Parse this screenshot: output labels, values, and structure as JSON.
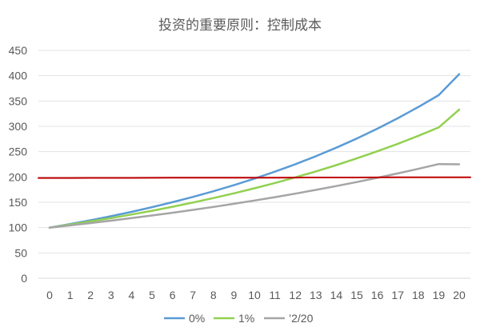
{
  "chart_data": {
    "type": "line",
    "title": "投资的重要原则：控制成本",
    "xlabel": "",
    "ylabel": "",
    "x": [
      0,
      1,
      2,
      3,
      4,
      5,
      6,
      7,
      8,
      9,
      10,
      11,
      12,
      13,
      14,
      15,
      16,
      17,
      18,
      19,
      20
    ],
    "ylim": [
      0,
      450
    ],
    "yticks": [
      0,
      50,
      100,
      150,
      200,
      250,
      300,
      350,
      400,
      450
    ],
    "grid": true,
    "legend_position": "bottom",
    "series": [
      {
        "name": "0%",
        "color": "#5b9bd5",
        "values": [
          100,
          107,
          114.5,
          122.5,
          131,
          140.3,
          150.1,
          160.6,
          171.8,
          183.8,
          196.7,
          210.5,
          225.2,
          241,
          257.9,
          275.9,
          295.2,
          315.9,
          338,
          361.6,
          403
        ]
      },
      {
        "name": "1%",
        "color": "#92d050",
        "values": [
          100,
          105.9,
          112.2,
          118.8,
          125.8,
          133.3,
          141.2,
          149.5,
          158.4,
          167.7,
          177.6,
          188.1,
          199.2,
          211,
          223.5,
          236.7,
          250.7,
          265.5,
          281.2,
          297.8,
          333
        ]
      },
      {
        "name": "’2/20",
        "color": "#a5a5a5",
        "values": [
          100,
          104.4,
          109,
          113.7,
          118.7,
          123.9,
          129.3,
          135,
          140.9,
          147,
          153.4,
          160.1,
          167.1,
          174.4,
          182,
          190,
          198.3,
          207,
          216,
          225.4,
          225
        ]
      },
      {
        "name": "",
        "color": "#c00000",
        "values": [
          198,
          198,
          198.1,
          198.2,
          198.2,
          198.3,
          198.4,
          198.4,
          198.5,
          198.6,
          198.7,
          198.7,
          198.8,
          198.9,
          198.9,
          199,
          199.1,
          199.2,
          199.3,
          199.3,
          199.4
        ]
      }
    ]
  }
}
